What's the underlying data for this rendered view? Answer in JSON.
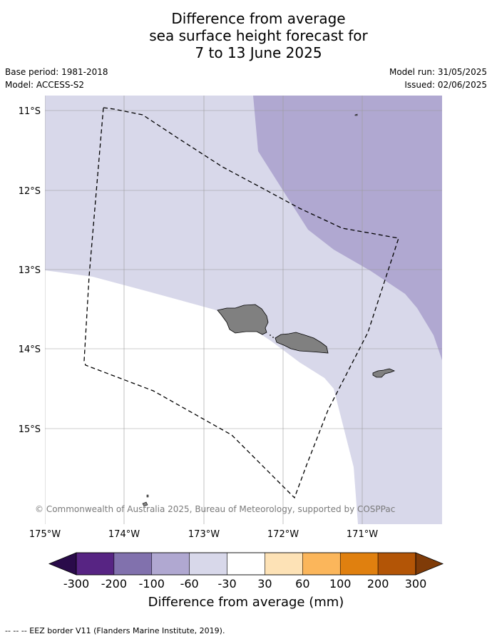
{
  "title": {
    "line1": "Difference from average",
    "line2": "sea surface height forecast for",
    "line3": "7 to 13 June 2025"
  },
  "meta": {
    "base_period": "Base period: 1981-2018",
    "model": "Model: ACCESS-S2",
    "model_run": "Model run: 31/05/2025",
    "issued": "Issued: 02/06/2025"
  },
  "map": {
    "latitude_labels": [
      "11°S",
      "12°S",
      "13°S",
      "14°S",
      "15°S"
    ],
    "longitude_labels": [
      "175°W",
      "174°W",
      "173°W",
      "172°W",
      "171°W"
    ],
    "lon_range": [
      -175,
      -170
    ],
    "lat_range": [
      -16.2,
      -10.8
    ],
    "copyright": "© Commonwealth of Australia 2025, Bureau of Meteorology, supported by COSPPac"
  },
  "colorbar": {
    "title": "Difference from average (mm)",
    "tick_labels": [
      "-300",
      "-200",
      "-100",
      "-60",
      "-30",
      "30",
      "60",
      "100",
      "200",
      "300"
    ],
    "colors": [
      "#2a0b4a",
      "#572483",
      "#8171ad",
      "#b0a8d1",
      "#d8d8ea",
      "#ffffff",
      "#fde2b6",
      "#fbb65b",
      "#e0800f",
      "#b35506",
      "#7f3b08"
    ]
  },
  "footnote": "--  --  -- EEZ border V11 (Flanders Marine Institute, 2019)."
}
